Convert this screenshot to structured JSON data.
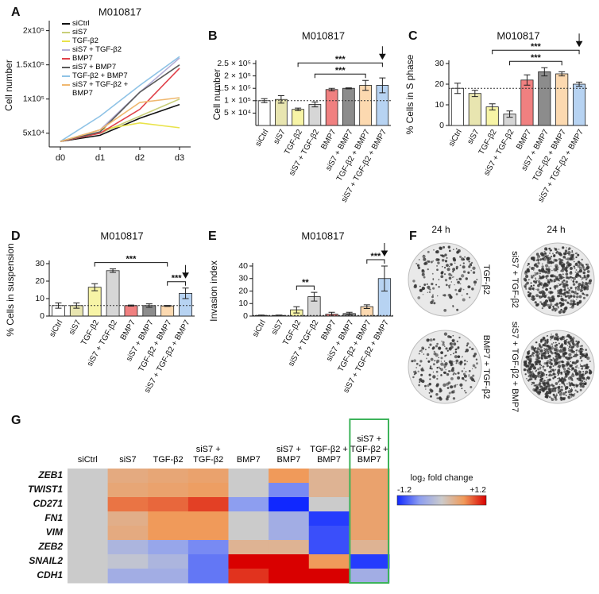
{
  "chart_data": [
    {
      "panel": "A",
      "type": "line",
      "title": "M010817",
      "ylabel": "Cell number",
      "categories": [
        "d0",
        "d1",
        "d2",
        "d3"
      ],
      "ylim": [
        30000,
        210000
      ],
      "yticks": [
        {
          "value": 50000,
          "label": "5x10⁴"
        },
        {
          "value": 100000,
          "label": "1x10⁵"
        },
        {
          "value": 150000,
          "label": "1.5x10⁵"
        },
        {
          "value": 200000,
          "label": "2x10⁵"
        }
      ],
      "series": [
        {
          "name": "siCtrl",
          "color": "#111111",
          "values": [
            38000,
            47000,
            72000,
            92000
          ]
        },
        {
          "name": "siS7",
          "color": "#c9cf7a",
          "values": [
            38000,
            50000,
            75000,
            100000
          ]
        },
        {
          "name": "TGF-β2",
          "color": "#e9e34a",
          "values": [
            38000,
            55000,
            65000,
            58000
          ]
        },
        {
          "name": "siS7 + TGF-β2",
          "color": "#b4aed6",
          "values": [
            38000,
            55000,
            110000,
            160000
          ]
        },
        {
          "name": "BMP7",
          "color": "#e0414a",
          "values": [
            38000,
            50000,
            85000,
            145000
          ]
        },
        {
          "name": "siS7 + BMP7",
          "color": "#5a5a5a",
          "values": [
            38000,
            52000,
            110000,
            150000
          ]
        },
        {
          "name": "TGF-β2 + BMP7",
          "color": "#8fc3e6",
          "values": [
            38000,
            75000,
            120000,
            162000
          ]
        },
        {
          "name": "siS7 + TGF-β2 + BMP7",
          "color": "#f0b870",
          "values": [
            38000,
            55000,
            95000,
            102000
          ]
        }
      ]
    },
    {
      "panel": "B",
      "type": "bar",
      "title": "M010817",
      "ylabel": "Cell number",
      "categories": [
        "siCtrl",
        "siS7",
        "TGF-β2",
        "siS7 + TGF-β2",
        "BMP7",
        "siS7 + BMP7",
        "TGF-β2 + BMP7",
        "siS7 + TGF-β2 + BMP7"
      ],
      "values": [
        100000,
        105000,
        65000,
        85000,
        145000,
        150000,
        162000,
        162000
      ],
      "errors": [
        8000,
        15000,
        5000,
        10000,
        5000,
        2000,
        20000,
        30000
      ],
      "colors": [
        "#ffffff",
        "#e8e5b0",
        "#f7f4a6",
        "#d6d6d6",
        "#f08080",
        "#8c8c8c",
        "#fcd9b0",
        "#b7d3f2"
      ],
      "ylim": [
        0,
        250000
      ],
      "yticks": [
        {
          "value": 50000,
          "label": "5 × 10⁴"
        },
        {
          "value": 100000,
          "label": "1 × 10⁵"
        },
        {
          "value": 150000,
          "label": "1.5 × 10⁵"
        },
        {
          "value": 200000,
          "label": "2 × 10⁵"
        },
        {
          "value": 250000,
          "label": "2.5 × 10⁵"
        }
      ],
      "reference_line": true,
      "annotations": [
        {
          "text": "***",
          "from": "siS7 + TGF-β2",
          "to": "TGF-β2 + BMP7"
        },
        {
          "text": "***",
          "from": "TGF-β2",
          "to": "siS7 + TGF-β2 + BMP7"
        }
      ]
    },
    {
      "panel": "C",
      "type": "bar",
      "title": "M010817",
      "ylabel": "% Cells in S phase",
      "categories": [
        "siCtrl",
        "siS7",
        "TGF-β2",
        "siS7 + TGF-β2",
        "BMP7",
        "siS7 + BMP7",
        "TGF-β2 + BMP7",
        "siS7 + TGF-β2 + BMP7"
      ],
      "values": [
        18,
        15.5,
        9,
        5.5,
        22,
        26,
        25,
        20
      ],
      "errors": [
        2.5,
        1.5,
        1.5,
        1.5,
        2.5,
        2,
        1,
        1
      ],
      "colors": [
        "#ffffff",
        "#e8e5b0",
        "#f7f4a6",
        "#d6d6d6",
        "#f08080",
        "#8c8c8c",
        "#fcd9b0",
        "#b7d3f2"
      ],
      "ylim": [
        0,
        30
      ],
      "yticks": [
        0,
        10,
        20,
        30
      ],
      "reference_line": true,
      "annotations": [
        {
          "text": "***",
          "from": "siS7 + TGF-β2",
          "to": "TGF-β2 + BMP7"
        },
        {
          "text": "***",
          "from": "TGF-β2",
          "to": "siS7 + TGF-β2 + BMP7"
        }
      ]
    },
    {
      "panel": "D",
      "type": "bar",
      "title": "M010817",
      "ylabel": "% Cells in suspension",
      "categories": [
        "siCtrl",
        "siS7",
        "TGF-β2",
        "siS7 + TGF-β2",
        "BMP7",
        "siS7 + BMP7",
        "TGF-β2 + BMP7",
        "siS7 + TGF-β2 + BMP7"
      ],
      "values": [
        6,
        6,
        16.5,
        26,
        6,
        6,
        5.8,
        13
      ],
      "errors": [
        1.5,
        1.5,
        2,
        1,
        0.3,
        1,
        0.3,
        3
      ],
      "colors": [
        "#ffffff",
        "#e8e5b0",
        "#f7f4a6",
        "#d6d6d6",
        "#f08080",
        "#8c8c8c",
        "#fcd9b0",
        "#b7d3f2"
      ],
      "ylim": [
        0,
        30
      ],
      "yticks": [
        0,
        10,
        20,
        30
      ],
      "reference_line": true,
      "annotations": [
        {
          "text": "***",
          "from": "TGF-β2 + BMP7",
          "to": "siS7 + TGF-β2 + BMP7"
        },
        {
          "text": "***",
          "from": "TGF-β2",
          "to": "TGF-β2 + BMP7"
        }
      ]
    },
    {
      "panel": "E",
      "type": "bar",
      "title": "M010817",
      "ylabel": "Invasion index",
      "categories": [
        "siCtrl",
        "siS7",
        "TGF-β2",
        "siS7 + TGF-β2",
        "BMP7",
        "siS7 + BMP7",
        "TGF-β2 + BMP7",
        "siS7 + TGF-β2 + BMP7"
      ],
      "values": [
        0.5,
        0.5,
        5,
        15.5,
        1.5,
        2,
        7.5,
        30
      ],
      "errors": [
        0.3,
        0.3,
        2.5,
        3.5,
        1.5,
        1,
        1.5,
        10
      ],
      "colors": [
        "#ffffff",
        "#e8e5b0",
        "#f7f4a6",
        "#d6d6d6",
        "#f08080",
        "#8c8c8c",
        "#fcd9b0",
        "#b7d3f2"
      ],
      "ylim": [
        0,
        40
      ],
      "yticks": [
        0,
        10,
        20,
        30,
        40
      ],
      "reference_line": true,
      "annotations": [
        {
          "text": "**",
          "from": "TGF-β2",
          "to": "siS7 + TGF-β2"
        },
        {
          "text": "***",
          "from": "TGF-β2 + BMP7",
          "to": "siS7 + TGF-β2 + BMP7"
        }
      ]
    },
    {
      "panel": "G",
      "type": "heatmap",
      "x": [
        "siCtrl",
        "siS7",
        "TGF-β2",
        "siS7 + TGF-β2",
        "BMP7",
        "siS7 + BMP7",
        "TGF-β2 + BMP7",
        "siS7 + TGF-β2 + BMP7"
      ],
      "y": [
        "ZEB1",
        "TWIST1",
        "CD271",
        "FN1",
        "VIM",
        "ZEB2",
        "SNAIL2",
        "CDH1"
      ],
      "values": [
        [
          0,
          0.4,
          0.45,
          0.5,
          0,
          0.6,
          0.3,
          0.5
        ],
        [
          0,
          0.45,
          0.5,
          0.55,
          0,
          -0.7,
          0.3,
          0.5
        ],
        [
          0,
          0.75,
          0.8,
          0.95,
          -0.6,
          -1.2,
          0,
          0.5
        ],
        [
          0,
          0.35,
          0.6,
          0.6,
          0,
          -0.4,
          -1.1,
          0.5
        ],
        [
          0,
          0.4,
          0.6,
          0.6,
          0,
          -0.4,
          -1.0,
          0.5
        ],
        [
          0,
          -0.3,
          -0.5,
          -0.7,
          0.3,
          0.3,
          -1.0,
          0.3
        ],
        [
          0,
          -0.1,
          -0.3,
          -0.8,
          1.2,
          1.2,
          0.6,
          -1.1
        ],
        [
          0,
          -0.4,
          -0.4,
          -0.8,
          1.0,
          1.2,
          1.2,
          -0.4
        ]
      ],
      "colorbar_label": "log₂ fold change",
      "zlim": [
        -1.2,
        1.2
      ],
      "zticks": [
        -1.2,
        {
          "value": 1.2,
          "label": "+1.2"
        }
      ],
      "colormap": [
        "#1028ff",
        "#8d9ef0",
        "#cbcbcb",
        "#f09a5a",
        "#d90000"
      ],
      "highlight_column": "siS7 + TGF-β2 + BMP7",
      "highlight_color": "#3db35a"
    }
  ],
  "images": {
    "panel": "F",
    "columns": [
      "24 h",
      "24 h"
    ],
    "labels": [
      "TGF-β2",
      "siS7 + TGF-β2",
      "BMP7 + TGF-β2",
      "siS7 + TGF-β2 + BMP7"
    ]
  }
}
